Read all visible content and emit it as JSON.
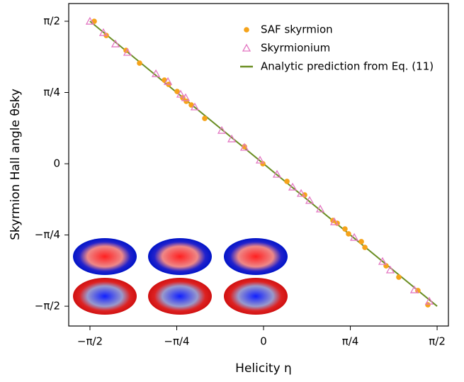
{
  "chart_data": {
    "type": "scatter",
    "xlabel": "Helicity η",
    "ylabel": "Skyrmion Hall angle θsky",
    "xlim": [
      -1.763,
      1.673
    ],
    "ylim": [
      -1.789,
      1.766
    ],
    "xticks": [
      {
        "value": -1.5708,
        "label": "−π/2"
      },
      {
        "value": -0.7854,
        "label": "−π/4"
      },
      0,
      {
        "value": 0.7854,
        "label": "π/4"
      },
      {
        "value": 1.5708,
        "label": "π/2"
      }
    ],
    "yticks": [
      {
        "value": -1.5708,
        "label": "−π/2"
      },
      {
        "value": -0.7854,
        "label": "−π/4"
      },
      0,
      {
        "value": 0.7854,
        "label": "π/4"
      },
      {
        "value": 1.5708,
        "label": "π/2"
      }
    ],
    "legend": "upper right",
    "series": [
      {
        "name": "SAF skyrmion",
        "color": "#f5a31a",
        "marker": "circle",
        "x": [
          -1.532,
          -1.423,
          -1.244,
          -1.122,
          -0.897,
          -0.859,
          -0.782,
          -0.731,
          -0.699,
          -0.654,
          -0.532,
          -0.173,
          -0.006,
          0.212,
          0.372,
          0.628,
          0.667,
          0.737,
          0.769,
          0.885,
          0.917,
          1.109,
          1.224,
          1.397,
          1.487
        ],
        "values": [
          1.57,
          1.414,
          1.25,
          1.109,
          0.922,
          0.875,
          0.797,
          0.727,
          0.688,
          0.648,
          0.5,
          0.188,
          0.0,
          -0.195,
          -0.344,
          -0.625,
          -0.656,
          -0.719,
          -0.773,
          -0.859,
          -0.922,
          -1.125,
          -1.25,
          -1.398,
          -1.555
        ]
      },
      {
        "name": "Skyrmionium",
        "color": "#e377c2",
        "marker": "triangle",
        "x": [
          -1.571,
          -1.449,
          -1.34,
          -1.231,
          -0.974,
          -0.865,
          -0.75,
          -0.705,
          -0.622,
          -0.378,
          -0.288,
          -0.173,
          -0.032,
          0.122,
          0.263,
          0.34,
          0.417,
          0.513,
          0.641,
          0.821,
          1.077,
          1.147,
          1.365,
          1.5
        ],
        "values": [
          1.57,
          1.445,
          1.32,
          1.227,
          0.992,
          0.906,
          0.766,
          0.727,
          0.625,
          0.367,
          0.273,
          0.18,
          0.039,
          -0.117,
          -0.258,
          -0.328,
          -0.406,
          -0.5,
          -0.641,
          -0.813,
          -1.078,
          -1.172,
          -1.391,
          -1.516
        ]
      },
      {
        "name": "Analytic prediction from Eq. (11)",
        "color": "#6b8e23",
        "marker": "line",
        "x": [
          -1.5708,
          1.5708
        ],
        "values": [
          1.5708,
          -1.5708
        ]
      }
    ]
  }
}
